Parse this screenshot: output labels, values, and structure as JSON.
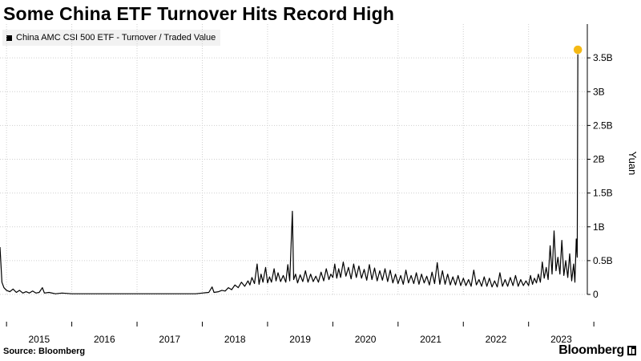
{
  "title": "Some China ETF Turnover Hits Record High",
  "source": "Source: Bloomberg",
  "brand": "Bloomberg",
  "chart_data": {
    "type": "line",
    "title": "Some China ETF Turnover Hits Record High",
    "ylabel": "Yuan",
    "xlabel": "",
    "ylim": [
      0,
      4.0
    ],
    "y_unit": "billion yuan",
    "y_ticks": [
      0,
      0.5,
      1,
      1.5,
      2,
      2.5,
      3,
      3.5
    ],
    "y_tick_labels": [
      "0",
      "0.5B",
      "1B",
      "1.5B",
      "2B",
      "2.5B",
      "3B",
      "3.5B"
    ],
    "x_range": [
      2014.9,
      2023.9
    ],
    "x_tick_labels": [
      "2015",
      "2016",
      "2017",
      "2018",
      "2019",
      "2020",
      "2021",
      "2022",
      "2023"
    ],
    "grid": true,
    "legend_position": "top-left",
    "series": [
      {
        "name": "China AMC CSI 500 ETF - Turnover / Traded Value",
        "color": "#000000",
        "points": [
          [
            2014.9,
            0.7
          ],
          [
            2014.93,
            0.18
          ],
          [
            2014.96,
            0.1
          ],
          [
            2015.0,
            0.06
          ],
          [
            2015.05,
            0.04
          ],
          [
            2015.1,
            0.08
          ],
          [
            2015.15,
            0.03
          ],
          [
            2015.2,
            0.06
          ],
          [
            2015.25,
            0.02
          ],
          [
            2015.3,
            0.04
          ],
          [
            2015.35,
            0.02
          ],
          [
            2015.4,
            0.05
          ],
          [
            2015.45,
            0.02
          ],
          [
            2015.5,
            0.03
          ],
          [
            2015.55,
            0.1
          ],
          [
            2015.58,
            0.02
          ],
          [
            2015.65,
            0.03
          ],
          [
            2015.75,
            0.01
          ],
          [
            2015.85,
            0.02
          ],
          [
            2016.0,
            0.01
          ],
          [
            2016.2,
            0.01
          ],
          [
            2016.5,
            0.01
          ],
          [
            2016.8,
            0.01
          ],
          [
            2017.0,
            0.01
          ],
          [
            2017.3,
            0.01
          ],
          [
            2017.6,
            0.01
          ],
          [
            2017.9,
            0.01
          ],
          [
            2018.0,
            0.02
          ],
          [
            2018.1,
            0.03
          ],
          [
            2018.15,
            0.11
          ],
          [
            2018.18,
            0.03
          ],
          [
            2018.25,
            0.04
          ],
          [
            2018.3,
            0.06
          ],
          [
            2018.35,
            0.05
          ],
          [
            2018.4,
            0.1
          ],
          [
            2018.45,
            0.07
          ],
          [
            2018.5,
            0.14
          ],
          [
            2018.55,
            0.1
          ],
          [
            2018.6,
            0.18
          ],
          [
            2018.65,
            0.12
          ],
          [
            2018.7,
            0.2
          ],
          [
            2018.73,
            0.14
          ],
          [
            2018.76,
            0.25
          ],
          [
            2018.8,
            0.16
          ],
          [
            2018.84,
            0.45
          ],
          [
            2018.87,
            0.15
          ],
          [
            2018.9,
            0.3
          ],
          [
            2018.93,
            0.18
          ],
          [
            2018.97,
            0.4
          ],
          [
            2019.0,
            0.17
          ],
          [
            2019.03,
            0.26
          ],
          [
            2019.06,
            0.18
          ],
          [
            2019.1,
            0.38
          ],
          [
            2019.13,
            0.2
          ],
          [
            2019.16,
            0.32
          ],
          [
            2019.2,
            0.19
          ],
          [
            2019.24,
            0.28
          ],
          [
            2019.28,
            0.18
          ],
          [
            2019.31,
            0.44
          ],
          [
            2019.34,
            0.2
          ],
          [
            2019.38,
            1.23
          ],
          [
            2019.4,
            0.22
          ],
          [
            2019.43,
            0.3
          ],
          [
            2019.46,
            0.17
          ],
          [
            2019.5,
            0.29
          ],
          [
            2019.54,
            0.19
          ],
          [
            2019.58,
            0.35
          ],
          [
            2019.62,
            0.18
          ],
          [
            2019.66,
            0.3
          ],
          [
            2019.7,
            0.19
          ],
          [
            2019.74,
            0.27
          ],
          [
            2019.78,
            0.18
          ],
          [
            2019.82,
            0.33
          ],
          [
            2019.86,
            0.2
          ],
          [
            2019.9,
            0.38
          ],
          [
            2019.94,
            0.22
          ],
          [
            2019.97,
            0.3
          ],
          [
            2020.0,
            0.25
          ],
          [
            2020.03,
            0.45
          ],
          [
            2020.06,
            0.24
          ],
          [
            2020.09,
            0.38
          ],
          [
            2020.12,
            0.25
          ],
          [
            2020.16,
            0.48
          ],
          [
            2020.2,
            0.27
          ],
          [
            2020.24,
            0.4
          ],
          [
            2020.28,
            0.23
          ],
          [
            2020.32,
            0.45
          ],
          [
            2020.36,
            0.25
          ],
          [
            2020.4,
            0.42
          ],
          [
            2020.44,
            0.24
          ],
          [
            2020.48,
            0.37
          ],
          [
            2020.52,
            0.21
          ],
          [
            2020.56,
            0.44
          ],
          [
            2020.6,
            0.22
          ],
          [
            2020.64,
            0.39
          ],
          [
            2020.68,
            0.2
          ],
          [
            2020.72,
            0.35
          ],
          [
            2020.76,
            0.21
          ],
          [
            2020.8,
            0.38
          ],
          [
            2020.84,
            0.19
          ],
          [
            2020.88,
            0.36
          ],
          [
            2020.92,
            0.17
          ],
          [
            2020.96,
            0.3
          ],
          [
            2021.0,
            0.16
          ],
          [
            2021.04,
            0.28
          ],
          [
            2021.08,
            0.15
          ],
          [
            2021.12,
            0.36
          ],
          [
            2021.16,
            0.17
          ],
          [
            2021.2,
            0.28
          ],
          [
            2021.24,
            0.16
          ],
          [
            2021.28,
            0.32
          ],
          [
            2021.32,
            0.15
          ],
          [
            2021.36,
            0.3
          ],
          [
            2021.4,
            0.17
          ],
          [
            2021.44,
            0.27
          ],
          [
            2021.48,
            0.14
          ],
          [
            2021.52,
            0.33
          ],
          [
            2021.56,
            0.16
          ],
          [
            2021.6,
            0.47
          ],
          [
            2021.64,
            0.15
          ],
          [
            2021.68,
            0.35
          ],
          [
            2021.72,
            0.15
          ],
          [
            2021.76,
            0.3
          ],
          [
            2021.8,
            0.14
          ],
          [
            2021.84,
            0.26
          ],
          [
            2021.88,
            0.14
          ],
          [
            2021.92,
            0.28
          ],
          [
            2021.96,
            0.13
          ],
          [
            2022.0,
            0.24
          ],
          [
            2022.04,
            0.13
          ],
          [
            2022.08,
            0.22
          ],
          [
            2022.12,
            0.12
          ],
          [
            2022.16,
            0.36
          ],
          [
            2022.2,
            0.14
          ],
          [
            2022.24,
            0.22
          ],
          [
            2022.28,
            0.12
          ],
          [
            2022.32,
            0.26
          ],
          [
            2022.36,
            0.12
          ],
          [
            2022.4,
            0.24
          ],
          [
            2022.44,
            0.11
          ],
          [
            2022.48,
            0.2
          ],
          [
            2022.52,
            0.11
          ],
          [
            2022.56,
            0.32
          ],
          [
            2022.6,
            0.12
          ],
          [
            2022.64,
            0.22
          ],
          [
            2022.68,
            0.12
          ],
          [
            2022.72,
            0.25
          ],
          [
            2022.76,
            0.13
          ],
          [
            2022.8,
            0.28
          ],
          [
            2022.84,
            0.12
          ],
          [
            2022.88,
            0.22
          ],
          [
            2022.92,
            0.13
          ],
          [
            2022.96,
            0.2
          ],
          [
            2023.0,
            0.13
          ],
          [
            2023.03,
            0.28
          ],
          [
            2023.06,
            0.15
          ],
          [
            2023.09,
            0.24
          ],
          [
            2023.12,
            0.17
          ],
          [
            2023.15,
            0.3
          ],
          [
            2023.18,
            0.18
          ],
          [
            2023.21,
            0.48
          ],
          [
            2023.24,
            0.24
          ],
          [
            2023.27,
            0.4
          ],
          [
            2023.3,
            0.22
          ],
          [
            2023.33,
            0.72
          ],
          [
            2023.36,
            0.3
          ],
          [
            2023.39,
            0.94
          ],
          [
            2023.42,
            0.35
          ],
          [
            2023.45,
            0.55
          ],
          [
            2023.48,
            0.3
          ],
          [
            2023.51,
            0.8
          ],
          [
            2023.54,
            0.28
          ],
          [
            2023.57,
            0.5
          ],
          [
            2023.6,
            0.25
          ],
          [
            2023.63,
            0.6
          ],
          [
            2023.66,
            0.2
          ],
          [
            2023.69,
            0.45
          ],
          [
            2023.71,
            0.18
          ],
          [
            2023.73,
            0.82
          ],
          [
            2023.745,
            0.55
          ],
          [
            2023.755,
            3.62
          ]
        ]
      }
    ],
    "highlight_point": {
      "x": 2023.755,
      "y": 3.62,
      "color": "#f5b914"
    }
  }
}
